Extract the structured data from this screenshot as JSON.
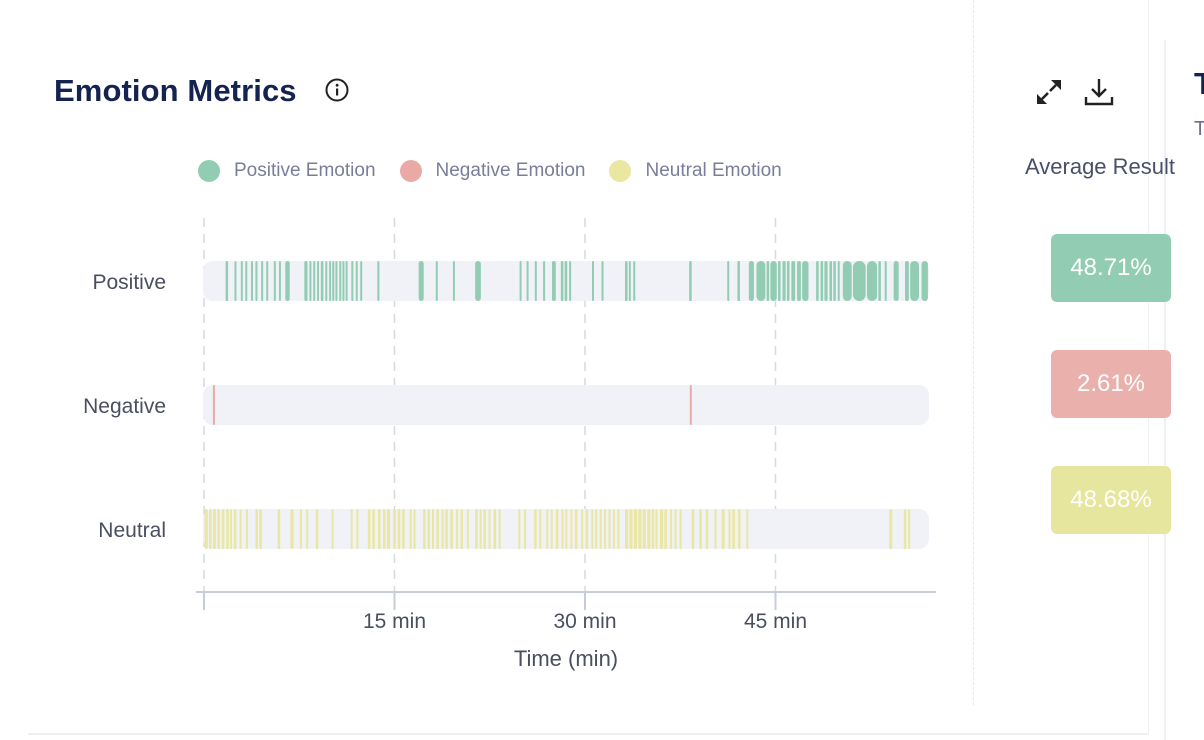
{
  "header": {
    "title": "Emotion Metrics",
    "info_icon": "info-circle-icon"
  },
  "toolbar": {
    "expand_icon": "expand-icon",
    "download_icon": "download-icon"
  },
  "side_panel": {
    "heading": "Average Result",
    "results": [
      {
        "label": "48.71%",
        "color": "#92cdb3"
      },
      {
        "label": "2.61%",
        "color": "#e9b0ac"
      },
      {
        "label": "48.68%",
        "color": "#e6e69e"
      }
    ],
    "cut_title": "T",
    "cut_subtitle": "T"
  },
  "colors": {
    "positive": "#92cdb3",
    "negative": "#e9a9a4",
    "neutral": "#e9e7a1",
    "track": "#f1f2f7"
  },
  "chart_data": {
    "type": "timeline",
    "xlabel": "Time (min)",
    "ylabel": "",
    "xlim": [
      0,
      57
    ],
    "x_ticks": [
      {
        "value": 15,
        "label": "15 min"
      },
      {
        "value": 30,
        "label": "30 min"
      },
      {
        "value": 45,
        "label": "45 min"
      }
    ],
    "grid": "vertical-dashed",
    "legend": {
      "placement": "top",
      "entries": [
        "Positive Emotion",
        "Negative Emotion",
        "Neutral Emotion"
      ]
    },
    "series": [
      {
        "name": "Positive Emotion",
        "category": "Positive",
        "segments": [
          [
            1.7,
            1.9
          ],
          [
            2.4,
            2.55
          ],
          [
            2.9,
            3.05
          ],
          [
            3.25,
            3.4
          ],
          [
            3.7,
            3.85
          ],
          [
            4.05,
            4.2
          ],
          [
            4.5,
            4.65
          ],
          [
            4.9,
            5.0
          ],
          [
            5.5,
            5.65
          ],
          [
            5.9,
            6.05
          ],
          [
            6.4,
            6.75
          ],
          [
            7.9,
            8.15
          ],
          [
            8.3,
            8.45
          ],
          [
            8.6,
            8.75
          ],
          [
            8.9,
            9.05
          ],
          [
            9.2,
            9.4
          ],
          [
            9.55,
            9.7
          ],
          [
            9.85,
            10.0
          ],
          [
            10.1,
            10.25
          ],
          [
            10.35,
            10.5
          ],
          [
            10.65,
            10.8
          ],
          [
            10.9,
            11.05
          ],
          [
            11.15,
            11.3
          ],
          [
            11.6,
            11.75
          ],
          [
            11.95,
            12.1
          ],
          [
            12.3,
            12.45
          ],
          [
            13.65,
            13.8
          ],
          [
            16.9,
            17.3
          ],
          [
            18.25,
            18.4
          ],
          [
            19.6,
            19.75
          ],
          [
            21.35,
            21.8
          ],
          [
            24.85,
            25.0
          ],
          [
            25.4,
            25.55
          ],
          [
            26.05,
            26.2
          ],
          [
            26.7,
            26.85
          ],
          [
            27.4,
            27.7
          ],
          [
            28.1,
            28.3
          ],
          [
            28.4,
            28.6
          ],
          [
            28.75,
            28.9
          ],
          [
            30.55,
            30.7
          ],
          [
            31.3,
            31.45
          ],
          [
            33.15,
            33.35
          ],
          [
            33.45,
            33.6
          ],
          [
            33.8,
            33.95
          ],
          [
            38.2,
            38.4
          ],
          [
            41.2,
            41.35
          ],
          [
            42.0,
            42.2
          ],
          [
            42.9,
            43.3
          ],
          [
            43.5,
            44.2
          ],
          [
            44.3,
            44.5
          ],
          [
            44.6,
            45.1
          ],
          [
            45.2,
            45.4
          ],
          [
            45.55,
            45.8
          ],
          [
            45.9,
            46.1
          ],
          [
            46.25,
            46.55
          ],
          [
            46.7,
            47.0
          ],
          [
            47.1,
            47.6
          ],
          [
            48.2,
            48.4
          ],
          [
            48.55,
            48.75
          ],
          [
            48.85,
            49.1
          ],
          [
            49.25,
            49.45
          ],
          [
            49.55,
            49.75
          ],
          [
            49.9,
            50.0
          ],
          [
            50.3,
            51.0
          ],
          [
            51.1,
            52.1
          ],
          [
            52.2,
            53.0
          ],
          [
            53.1,
            53.3
          ],
          [
            53.6,
            53.75
          ],
          [
            54.3,
            54.7
          ],
          [
            55.2,
            55.5
          ],
          [
            55.6,
            56.3
          ],
          [
            56.5,
            57.0
          ]
        ]
      },
      {
        "name": "Negative Emotion",
        "category": "Negative",
        "segments": [
          [
            0.7,
            0.85
          ],
          [
            38.25,
            38.4
          ]
        ]
      },
      {
        "name": "Neutral Emotion",
        "category": "Neutral",
        "segments": [
          [
            0.05,
            0.3
          ],
          [
            0.4,
            0.6
          ],
          [
            0.7,
            0.95
          ],
          [
            1.05,
            1.25
          ],
          [
            1.4,
            1.6
          ],
          [
            1.75,
            1.95
          ],
          [
            2.05,
            2.2
          ],
          [
            2.35,
            2.55
          ],
          [
            2.8,
            2.95
          ],
          [
            3.3,
            3.45
          ],
          [
            4.05,
            4.25
          ],
          [
            4.35,
            4.55
          ],
          [
            5.8,
            6.0
          ],
          [
            6.8,
            7.05
          ],
          [
            7.55,
            7.7
          ],
          [
            8.05,
            8.2
          ],
          [
            8.8,
            9.0
          ],
          [
            10.05,
            10.2
          ],
          [
            11.55,
            11.7
          ],
          [
            12.0,
            12.15
          ],
          [
            12.9,
            13.1
          ],
          [
            13.25,
            13.45
          ],
          [
            13.7,
            13.9
          ],
          [
            14.1,
            14.3
          ],
          [
            14.4,
            14.65
          ],
          [
            14.9,
            15.1
          ],
          [
            15.25,
            15.45
          ],
          [
            15.6,
            15.8
          ],
          [
            16.2,
            16.35
          ],
          [
            16.5,
            16.65
          ],
          [
            17.25,
            17.45
          ],
          [
            17.6,
            17.8
          ],
          [
            17.95,
            18.1
          ],
          [
            18.3,
            18.5
          ],
          [
            18.7,
            18.85
          ],
          [
            19.0,
            19.2
          ],
          [
            19.4,
            19.6
          ],
          [
            19.85,
            20.0
          ],
          [
            20.2,
            20.4
          ],
          [
            20.7,
            20.85
          ],
          [
            21.35,
            21.55
          ],
          [
            21.7,
            21.85
          ],
          [
            22.0,
            22.2
          ],
          [
            22.4,
            22.55
          ],
          [
            22.8,
            23.0
          ],
          [
            23.2,
            23.35
          ],
          [
            24.75,
            24.9
          ],
          [
            25.2,
            25.35
          ],
          [
            26.0,
            26.2
          ],
          [
            26.4,
            26.55
          ],
          [
            26.95,
            27.1
          ],
          [
            27.3,
            27.45
          ],
          [
            27.7,
            27.9
          ],
          [
            28.15,
            28.3
          ],
          [
            28.45,
            28.6
          ],
          [
            28.85,
            29.0
          ],
          [
            29.2,
            29.4
          ],
          [
            29.7,
            29.85
          ],
          [
            30.05,
            30.25
          ],
          [
            30.5,
            30.65
          ],
          [
            30.8,
            30.95
          ],
          [
            31.15,
            31.3
          ],
          [
            31.5,
            31.65
          ],
          [
            31.85,
            32.0
          ],
          [
            32.2,
            32.35
          ],
          [
            32.55,
            32.7
          ],
          [
            33.15,
            33.4
          ],
          [
            33.5,
            33.75
          ],
          [
            33.85,
            34.1
          ],
          [
            34.2,
            34.45
          ],
          [
            34.55,
            34.8
          ],
          [
            34.9,
            35.15
          ],
          [
            35.25,
            35.45
          ],
          [
            35.55,
            35.7
          ],
          [
            35.9,
            36.15
          ],
          [
            36.25,
            36.45
          ],
          [
            36.7,
            36.85
          ],
          [
            37.05,
            37.2
          ],
          [
            37.45,
            37.6
          ],
          [
            38.4,
            38.6
          ],
          [
            39.0,
            39.2
          ],
          [
            39.5,
            39.7
          ],
          [
            40.2,
            40.35
          ],
          [
            40.75,
            41.0
          ],
          [
            41.3,
            41.45
          ],
          [
            41.6,
            41.8
          ],
          [
            42.05,
            42.25
          ],
          [
            42.7,
            42.85
          ],
          [
            53.95,
            54.2
          ],
          [
            55.1,
            55.3
          ],
          [
            55.45,
            55.6
          ]
        ]
      }
    ]
  }
}
